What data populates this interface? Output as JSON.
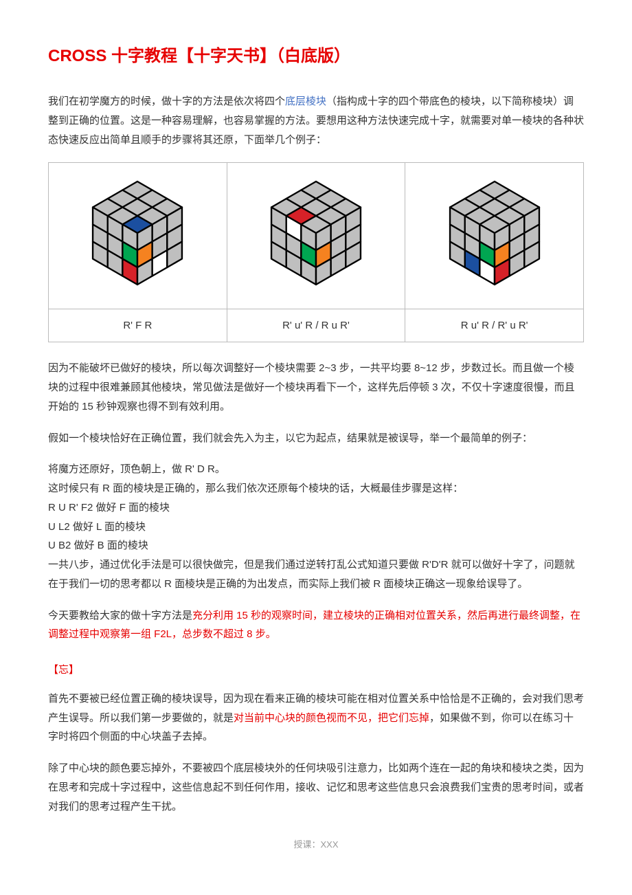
{
  "title": "CROSS 十字教程【十字天书】（白底版）",
  "intro": {
    "pre": "我们在初学魔方的时候，做十字的方法是依次将四个",
    "blue": "底层棱块",
    "post": "（指构成十字的四个带底色的棱块，以下简称棱块）调整到正确的位置。这是一种容易理解，也容易掌握的方法。要想用这种方法快速完成十字，就需要对单一棱块的各种状态快速反应出简单且顺手的步骤将其还原，下面举几个例子："
  },
  "captions": [
    "R' F R",
    "R' u' R / R u R'",
    "R u' R / R' u R'"
  ],
  "p2": "因为不能破坏已做好的棱块，所以每次调整好一个棱块需要 2~3 步，一共平均要 8~12 步，步数过长。而且做一个棱块的过程中很难兼顾其他棱块，常见做法是做好一个棱块再看下一个，这样先后停顿 3 次，不仅十字速度很慢，而且开始的 15 秒钟观察也得不到有效利用。",
  "p3": "假如一个棱块恰好在正确位置，我们就会先入为主，以它为起点，结果就是被误导，举一个最简单的例子：",
  "steps": [
    "将魔方还原好，顶色朝上，做 R' D R。",
    "这时候只有 R 面的棱块是正确的，那么我们依次还原每个棱块的话，大概最佳步骤是这样：",
    "R U R' F2  做好 F 面的棱块",
    "U L2  做好 L 面的棱块",
    "U B2  做好 B 面的棱块",
    "一共八步，通过优化手法是可以很快做完，但是我们通过逆转打乱公式知道只要做 R'D'R 就可以做好十字了，问题就在于我们一切的思考都以 R 面棱块是正确的为出发点，而实际上我们被 R 面棱块正确这一现象给误导了。"
  ],
  "method": {
    "pre": "今天要教给大家的做十字方法是",
    "red": "充分利用 15 秒的观察时间，建立棱块的正确相对位置关系，然后再进行最终调整，在调整过程中观察第一组 F2L，总步数不超过 8 步。"
  },
  "sectionTitle": "【忘】",
  "p4": {
    "pre": "首先不要被已经位置正确的棱块误导，因为现在看来正确的棱块可能在相对位置关系中恰恰是不正确的，会对我们思考产生误导。所以我们第一步要做的，就是",
    "red": "对当前中心块的颜色视而不见，把它们忘掉",
    "post": "，如果做不到，你可以在练习十字时将四个侧面的中心块盖子去掉。"
  },
  "p5": "除了中心块的颜色要忘掉外，不要被四个底层棱块外的任何块吸引注意力，比如两个连在一起的角块和棱块之类，因为在思考和完成十字过程中，这些信息起不到任何作用，接收、记忆和思考这些信息只会浪费我们宝贵的思考时间，或者对我们的思考过程产生干扰。",
  "footer": "授课：XXX",
  "cubes": [
    {
      "top": [
        "g",
        "g",
        "g",
        "g",
        "g",
        "g",
        "g",
        "g",
        "B"
      ],
      "front": [
        "g",
        "g",
        "g",
        "g",
        "g",
        "G",
        "g",
        "g",
        "R"
      ],
      "right": [
        "g",
        "g",
        "g",
        "O",
        "g",
        "g",
        "g",
        "W",
        "g"
      ]
    },
    {
      "top": [
        "g",
        "g",
        "g",
        "g",
        "g",
        "g",
        "g",
        "R",
        "g"
      ],
      "front": [
        "g",
        "W",
        "g",
        "g",
        "g",
        "G",
        "g",
        "g",
        "g"
      ],
      "right": [
        "g",
        "g",
        "g",
        "O",
        "g",
        "g",
        "g",
        "g",
        "g"
      ]
    },
    {
      "top": [
        "g",
        "g",
        "g",
        "g",
        "g",
        "g",
        "g",
        "g",
        "g"
      ],
      "front": [
        "g",
        "g",
        "g",
        "g",
        "g",
        "G",
        "g",
        "B",
        "W"
      ],
      "right": [
        "g",
        "g",
        "g",
        "O",
        "g",
        "g",
        "R",
        "g",
        "g"
      ]
    }
  ],
  "colors": {
    "g": "#bfbfbf",
    "W": "#ffffff",
    "R": "#d62128",
    "G": "#00a651",
    "B": "#1b4fa0",
    "O": "#f58220",
    "Y": "#ffd500"
  }
}
